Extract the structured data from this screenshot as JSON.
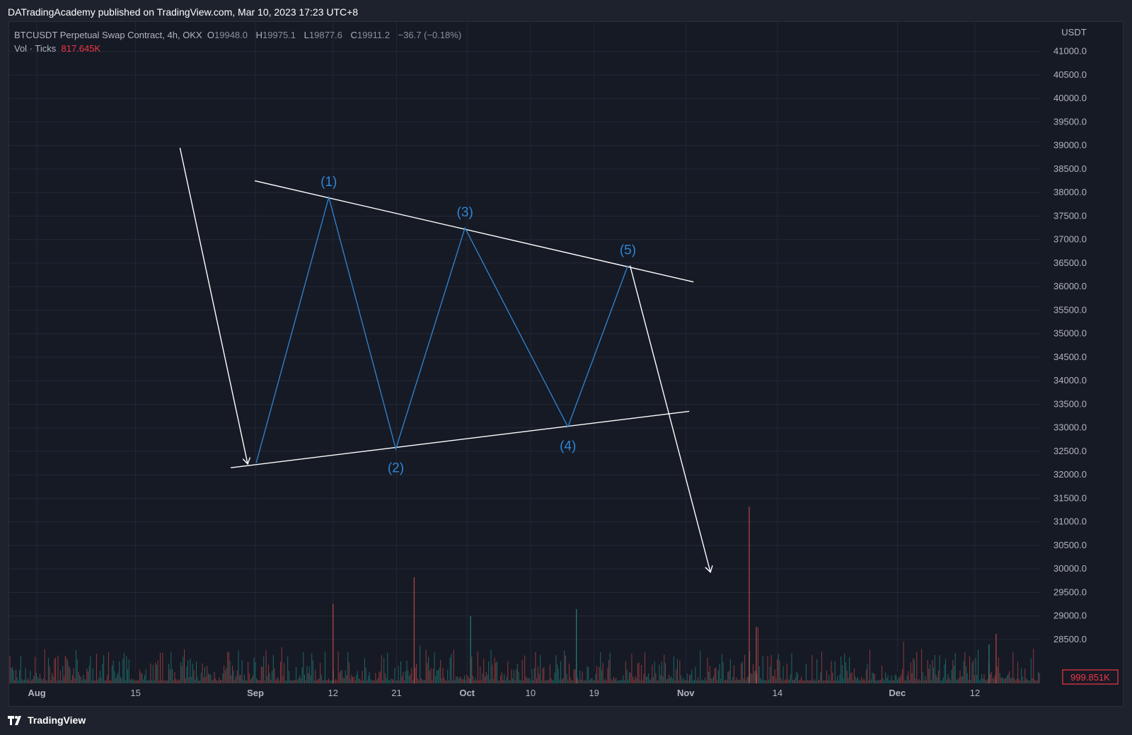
{
  "header": {
    "published_text": "DATradingAcademy published on TradingView.com, Mar 10, 2023 17:23 UTC+8"
  },
  "legend": {
    "symbol": "BTCUSDT Perpetual Swap Contract, 4h, OKX",
    "open_label": "O",
    "open_value": "19948.0",
    "high_label": "H",
    "high_value": "19975.1",
    "low_label": "L",
    "low_value": "19877.6",
    "close_label": "C",
    "close_value": "19911.2",
    "change": "−36.7 (−0.18%)",
    "volume_label": "Vol · Ticks",
    "volume_value": "817.645K"
  },
  "footer": {
    "brand": "TradingView"
  },
  "colors": {
    "background": "#161a25",
    "grid": "#242836",
    "axis_text": "#b2b5be",
    "trendline": "#ffffff",
    "wave": "#2f86d6",
    "volume_up": "#26a69a",
    "volume_down": "#ef5350",
    "volume_badge": "#f23645"
  },
  "chart_data": {
    "type": "line",
    "symbol": "BTCUSDT",
    "timeframe": "4h",
    "y_unit": "USDT",
    "ylim": [
      27700,
      41500
    ],
    "y_ticks": [
      28500,
      29000,
      29500,
      30000,
      30500,
      31000,
      31500,
      32000,
      32500,
      33000,
      33500,
      34000,
      34500,
      35000,
      35500,
      36000,
      36500,
      37000,
      37500,
      38000,
      38500,
      39000,
      39500,
      40000,
      40500,
      41000
    ],
    "x_tick_labels": [
      {
        "day": 0,
        "label": "Aug"
      },
      {
        "day": 14,
        "label": "15"
      },
      {
        "day": 31,
        "label": "Sep"
      },
      {
        "day": 42,
        "label": "12"
      },
      {
        "day": 51,
        "label": "21"
      },
      {
        "day": 61,
        "label": "Oct"
      },
      {
        "day": 70,
        "label": "10"
      },
      {
        "day": 79,
        "label": "19"
      },
      {
        "day": 92,
        "label": "Nov"
      },
      {
        "day": 105,
        "label": "14"
      },
      {
        "day": 122,
        "label": "Dec"
      },
      {
        "day": 133,
        "label": "12"
      }
    ],
    "x_range_days": [
      -4,
      141
    ],
    "grid": true,
    "current_volume_label": "999.851K",
    "wave": [
      {
        "day": 31.1,
        "price": 32250,
        "label": ""
      },
      {
        "day": 41.4,
        "price": 37900,
        "label": "(1)"
      },
      {
        "day": 50.9,
        "price": 32550,
        "label": "(2)"
      },
      {
        "day": 60.7,
        "price": 37250,
        "label": "(3)"
      },
      {
        "day": 75.3,
        "price": 33020,
        "label": "(4)"
      },
      {
        "day": 83.8,
        "price": 36450,
        "label": "(5)"
      }
    ],
    "upper_trendline": [
      {
        "day": 30.9,
        "price": 38250
      },
      {
        "day": 93.1,
        "price": 36100
      }
    ],
    "lower_trendline": [
      {
        "day": 27.5,
        "price": 32150
      },
      {
        "day": 92.5,
        "price": 33350
      }
    ],
    "arrows": [
      {
        "from": {
          "day": 20.3,
          "price": 38950
        },
        "to": {
          "day": 29.9,
          "price": 32230
        }
      },
      {
        "from": {
          "day": 84.1,
          "price": 36450
        },
        "to": {
          "day": 95.5,
          "price": 29930
        }
      }
    ],
    "volume_spikes": [
      {
        "day": 42.0,
        "rel": 0.45,
        "up": false
      },
      {
        "day": 53.5,
        "rel": 0.6,
        "up": false
      },
      {
        "day": 61.5,
        "rel": 0.38,
        "up": true
      },
      {
        "day": 76.5,
        "rel": 0.42,
        "up": true
      },
      {
        "day": 101.0,
        "rel": 1.0,
        "up": false
      },
      {
        "day": 102.0,
        "rel": 0.32,
        "up": false
      },
      {
        "day": 136.0,
        "rel": 0.28,
        "up": false
      },
      {
        "day": 135.0,
        "rel": 0.22,
        "up": true
      }
    ]
  }
}
